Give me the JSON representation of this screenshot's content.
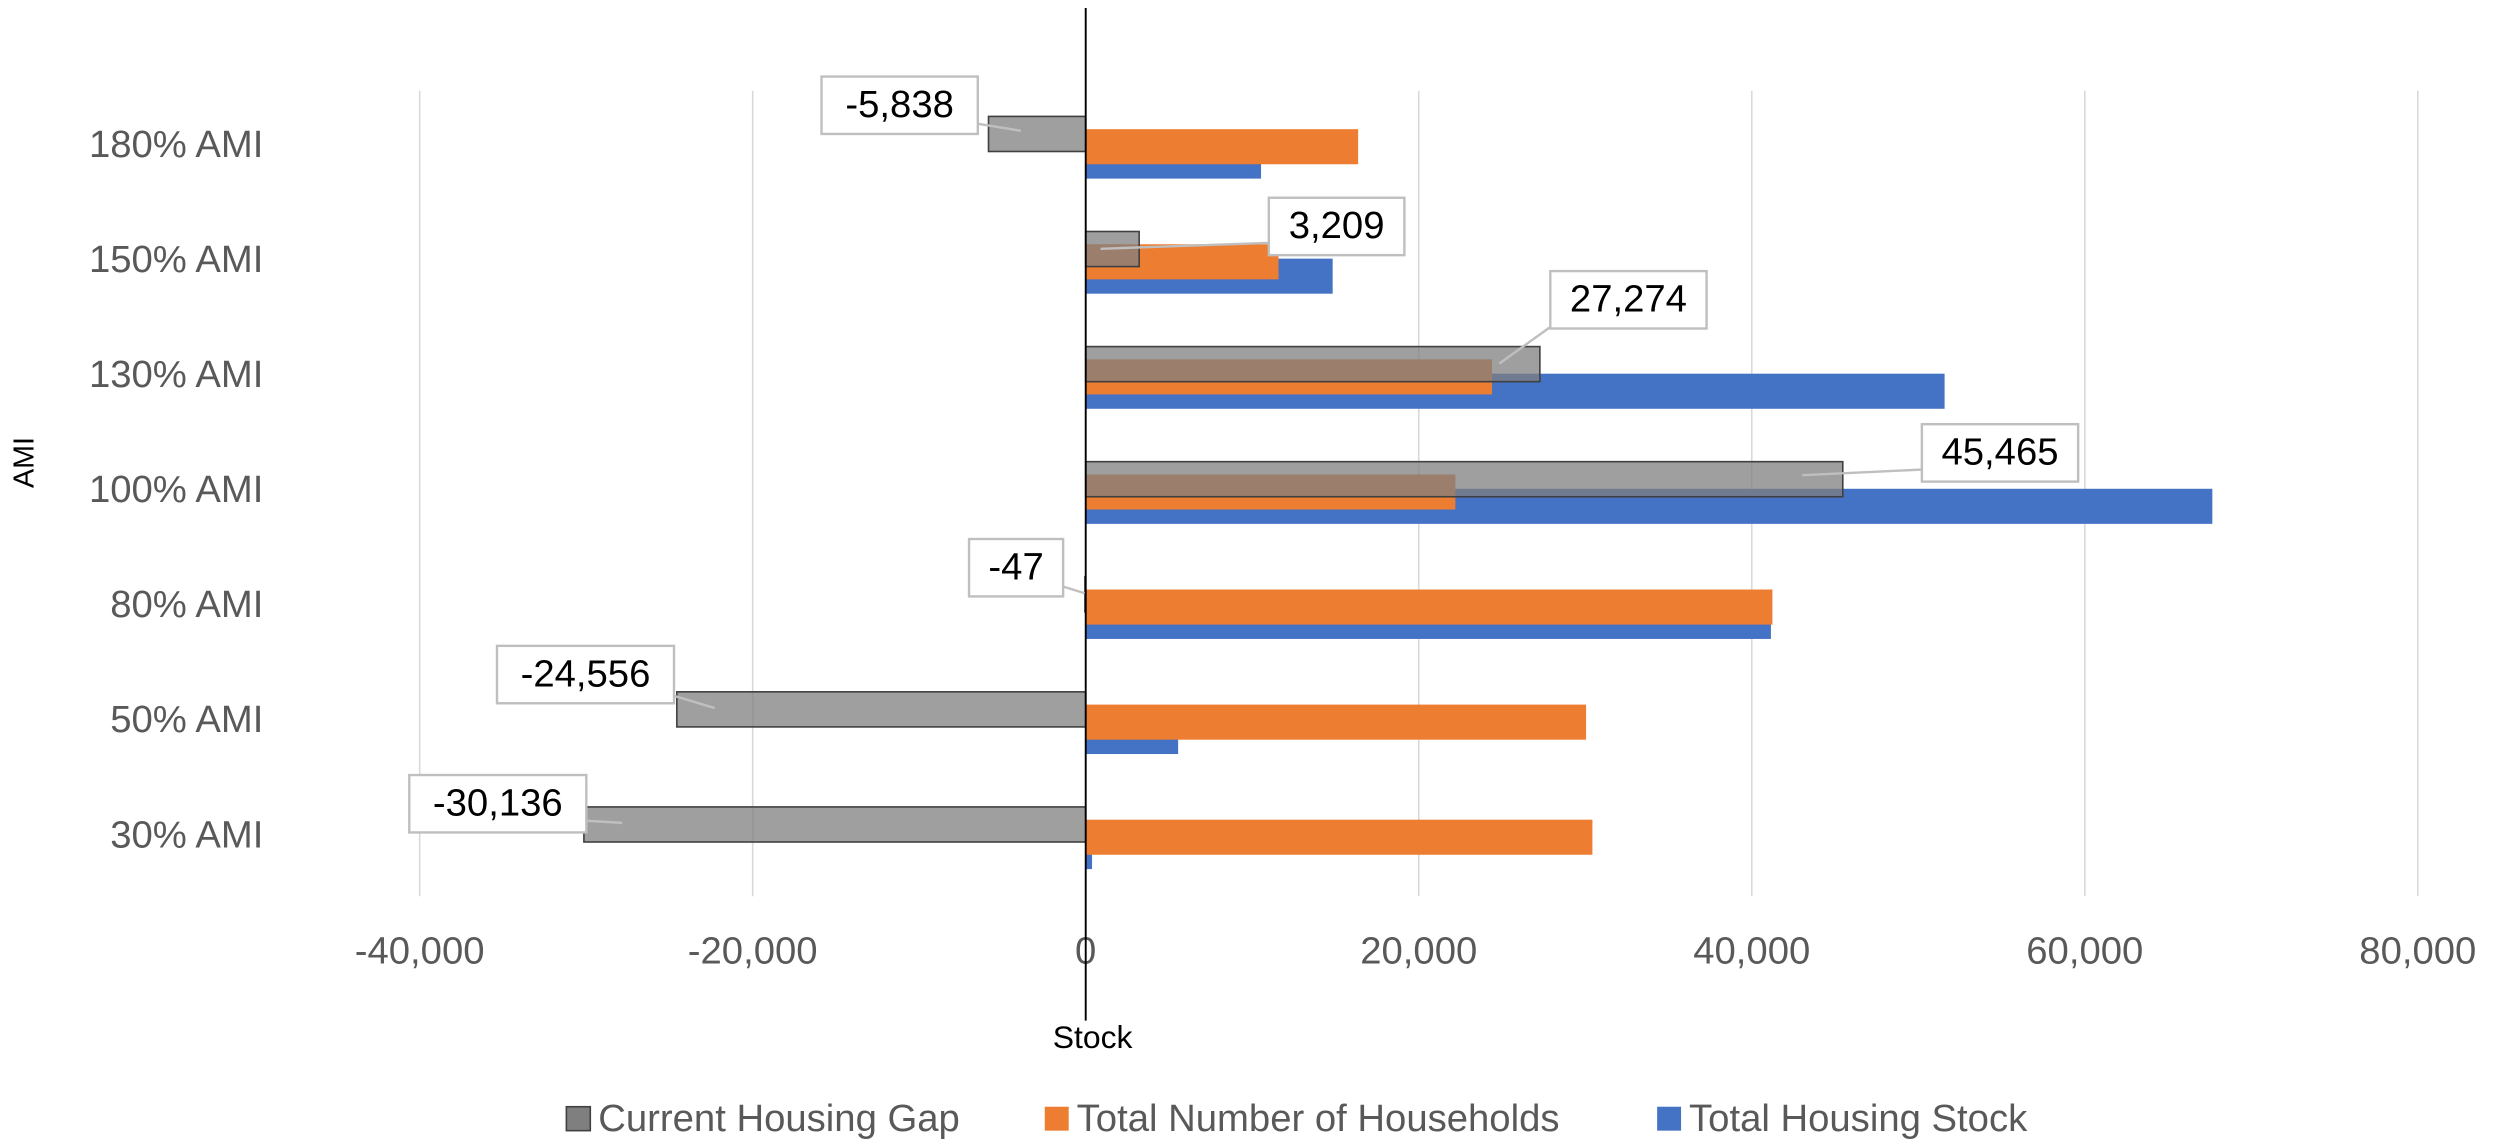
{
  "chart_data": {
    "type": "hbar",
    "categories": [
      "30% AMI",
      "50% AMI",
      "80% AMI",
      "100% AMI",
      "130% AMI",
      "150% AMI",
      "180% AMI"
    ],
    "series": [
      {
        "name": "Current Housing Gap",
        "color": "#7f7f7f",
        "values": [
          -30136,
          -24556,
          -47,
          45465,
          27274,
          3209,
          -5838
        ],
        "value_labels": [
          "-30,136",
          "-24,556",
          "-47",
          "45,465",
          "27,274",
          "3,209",
          "-5,838"
        ]
      },
      {
        "name": "Total Number of Households",
        "color": "#ed7d31",
        "values": [
          30430,
          30050,
          41240,
          22200,
          24400,
          11580,
          16360
        ]
      },
      {
        "name": "Total Housing Stock",
        "color": "#4472c4",
        "values": [
          380,
          5550,
          41150,
          67660,
          51580,
          14830,
          10530
        ]
      }
    ],
    "xlim": [
      -40000,
      80000
    ],
    "xticks": [
      {
        "value": -40000,
        "label": "-40,000"
      },
      {
        "value": -20000,
        "label": "-20,000"
      },
      0,
      {
        "value": 20000,
        "label": "20,000"
      },
      {
        "value": 40000,
        "label": "40,000"
      },
      {
        "value": 60000,
        "label": "60,000"
      },
      {
        "value": 80000,
        "label": "80,000"
      }
    ],
    "x_label": "Stock",
    "y_label": "AMI",
    "grid": true,
    "legend": "bottom"
  }
}
